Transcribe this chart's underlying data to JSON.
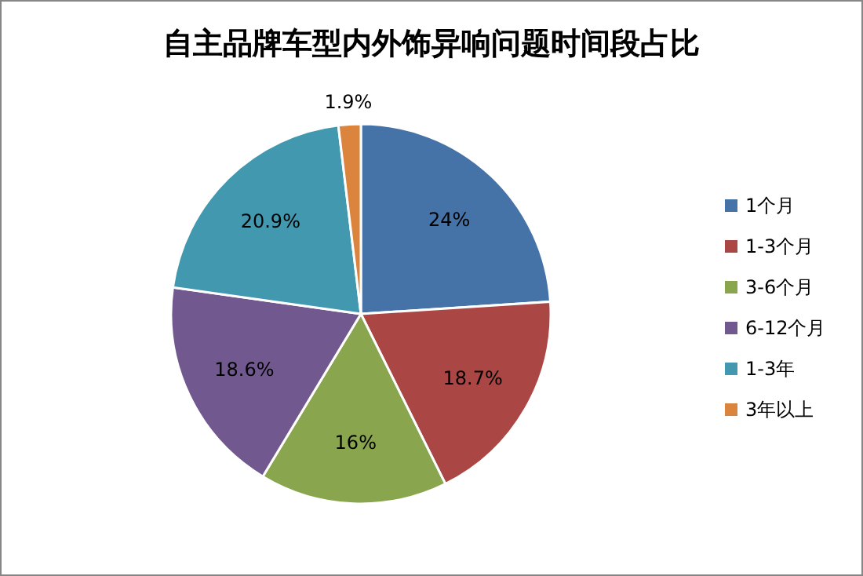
{
  "chart_data": {
    "type": "pie",
    "title": "自主品牌车型内外饰异响问题时间段占比",
    "categories": [
      "1个月",
      "1-3个月",
      "3-6个月",
      "6-12个月",
      "1-3年",
      "3年以上"
    ],
    "values": [
      24,
      18.7,
      16,
      18.6,
      20.9,
      1.9
    ],
    "value_labels": [
      "24%",
      "18.7%",
      "16%",
      "18.6%",
      "20.9%",
      "1.9%"
    ],
    "colors": [
      "#4572a7",
      "#aa4643",
      "#89a54e",
      "#71588f",
      "#4198af",
      "#db843d"
    ],
    "legend": "right"
  }
}
